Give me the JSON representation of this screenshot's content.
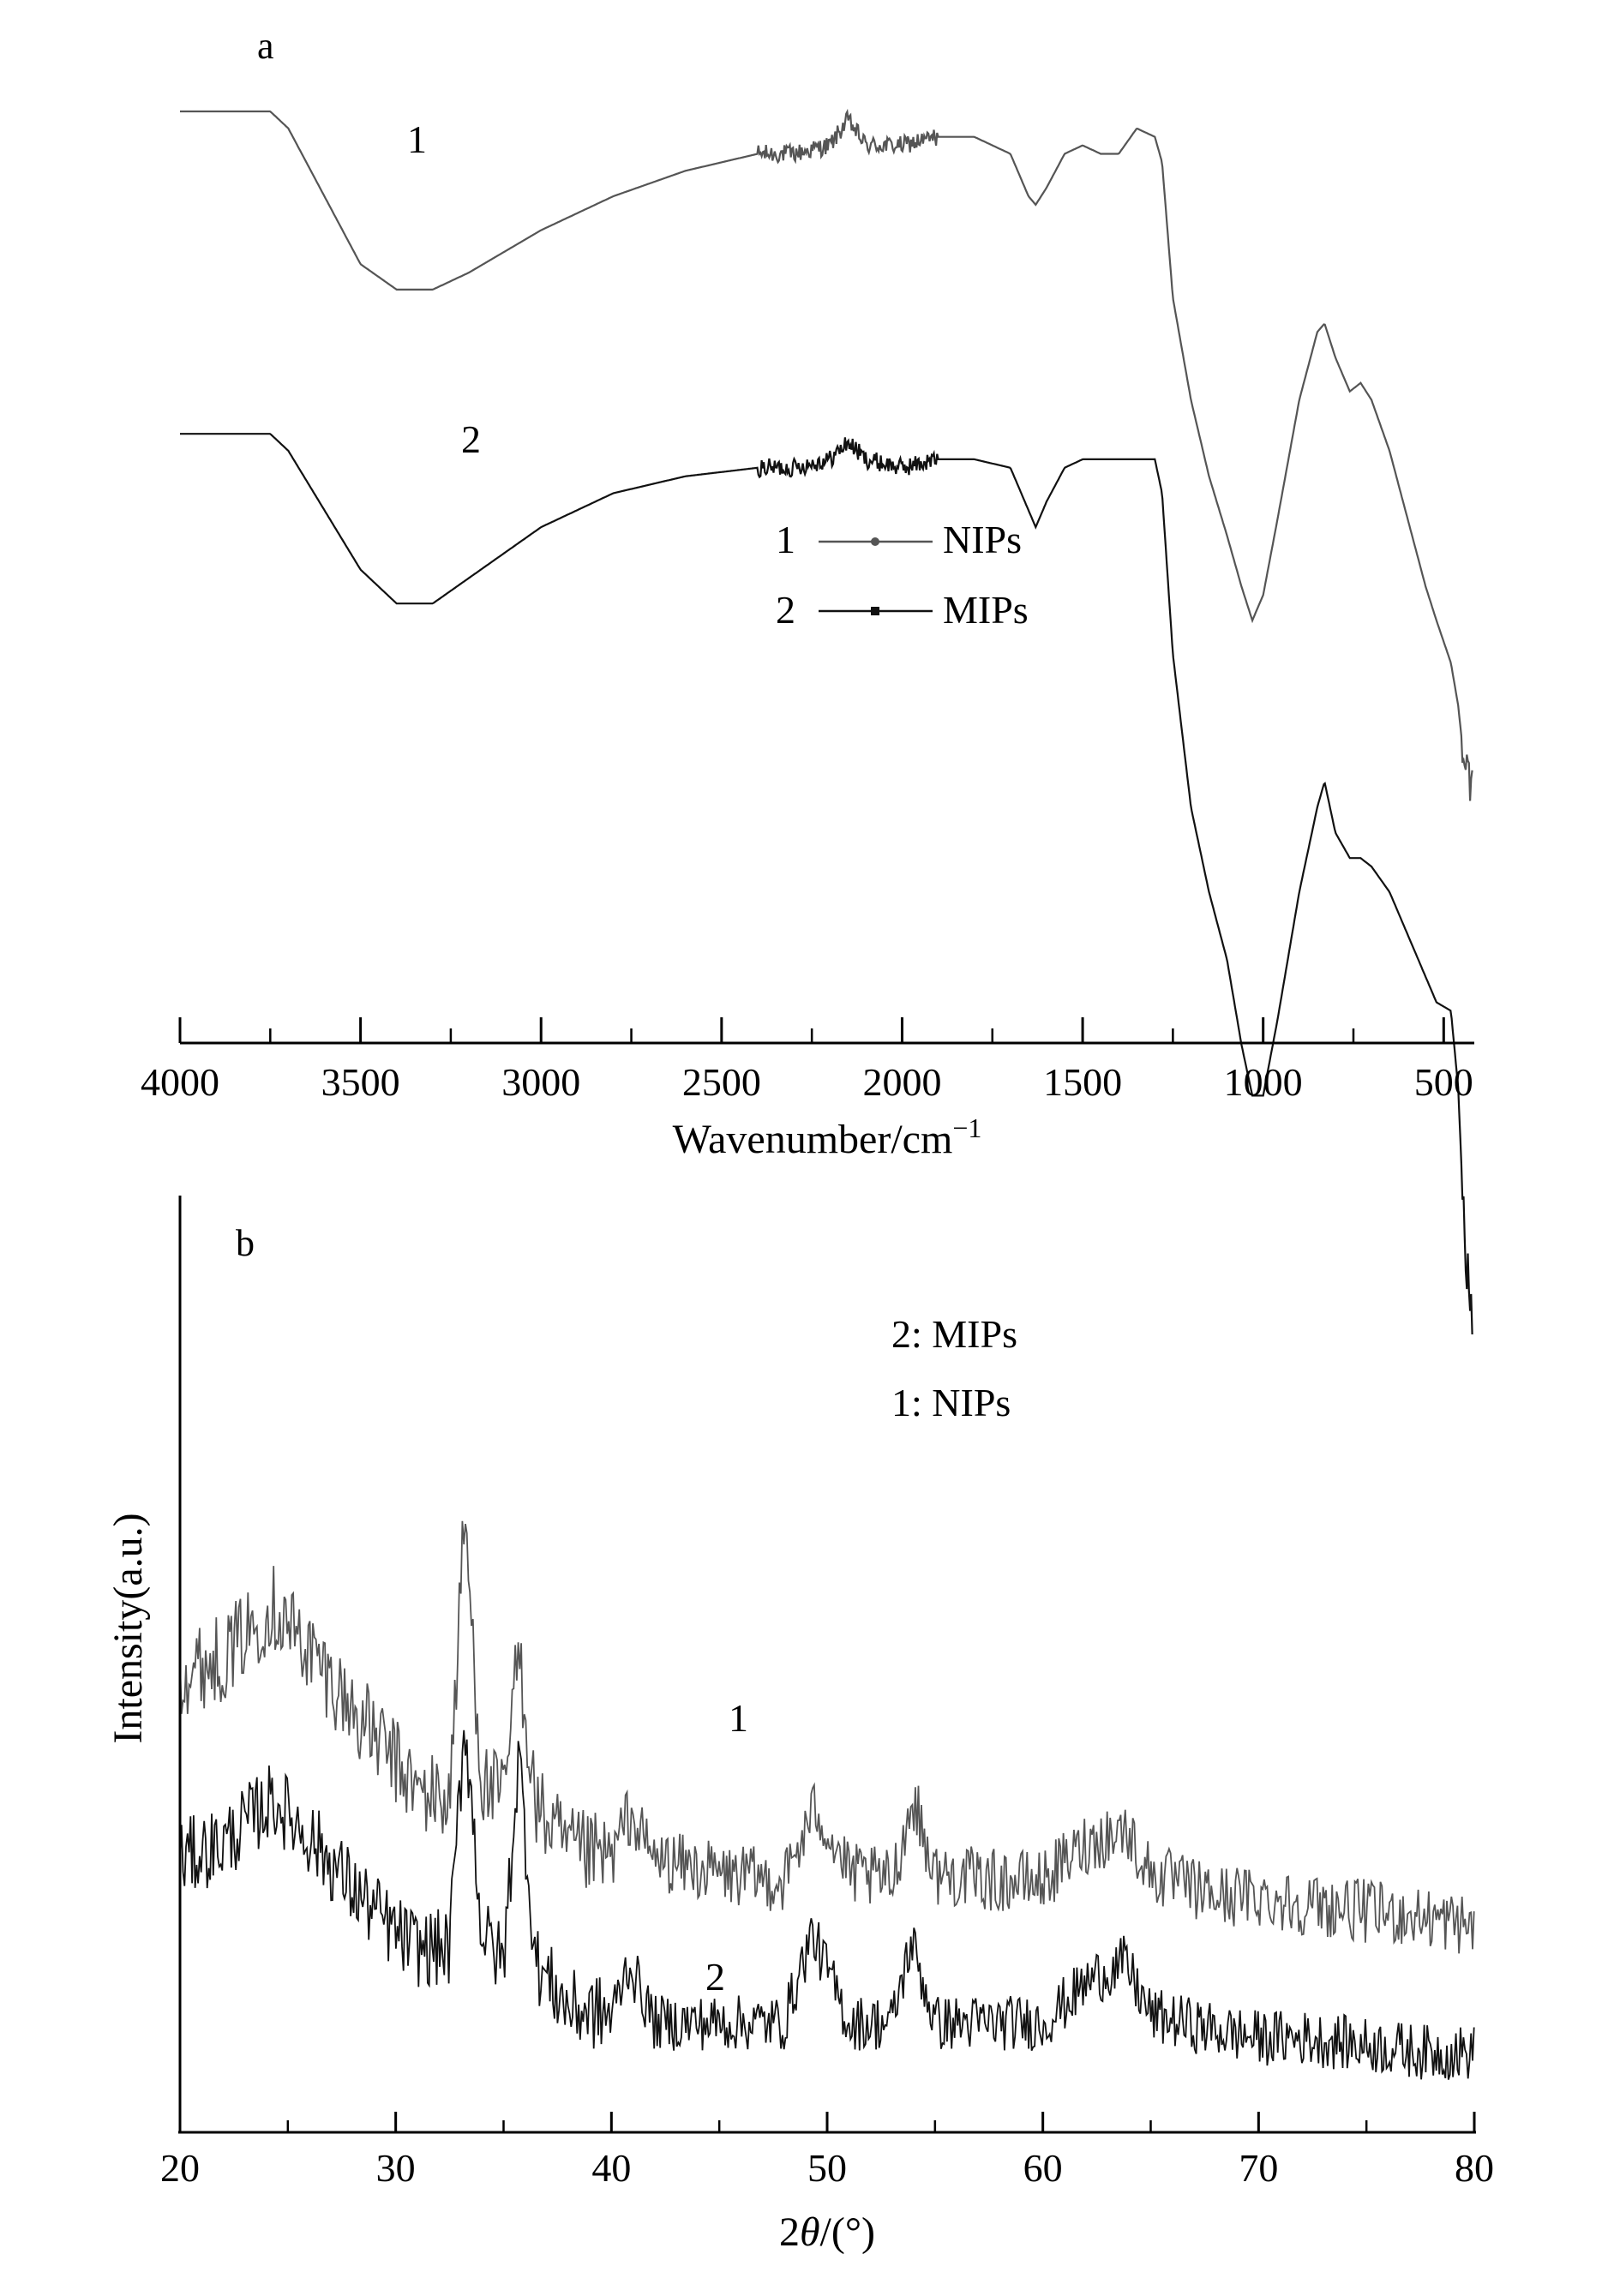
{
  "panel_a": {
    "panel_label": "a",
    "curve_labels": [
      "1",
      "2"
    ],
    "legend": [
      {
        "number": "1",
        "marker": "circle",
        "name": "NIPs"
      },
      {
        "number": "2",
        "marker": "square",
        "name": "MIPs"
      }
    ],
    "xlabel_main": "Wavenumber/cm",
    "xlabel_sup": "−1"
  },
  "panel_b": {
    "panel_label": "b",
    "legend": [
      "2: MIPs",
      "1: NIPs"
    ],
    "curve_labels": [
      "1",
      "2"
    ],
    "ylabel": "Intensity(a.u.)",
    "xlabel_pre": "2",
    "xlabel_theta": "θ",
    "xlabel_post": "/(°)"
  },
  "colors": {
    "nips": "#555555",
    "mips": "#111111",
    "axis": "#000000"
  },
  "chart_data": [
    {
      "type": "line",
      "x_axis": {
        "label": "Wavenumber/cm−1",
        "range": [
          4000,
          420
        ],
        "reversed": true,
        "ticks": [
          4000,
          3500,
          3000,
          2500,
          2000,
          1500,
          1000,
          500
        ],
        "minor_step": 250
      },
      "y_axis": {
        "label": "",
        "ticks": false,
        "units": "transmittance (arbitrary)"
      },
      "grid": false,
      "legend_position": "center-right",
      "series": [
        {
          "name": "NIPs",
          "label": "1",
          "x": [
            4000,
            3750,
            3700,
            3600,
            3500,
            3400,
            3300,
            3200,
            3000,
            2800,
            2600,
            2400,
            2300,
            2200,
            2150,
            2100,
            2000,
            1900,
            1800,
            1700,
            1650,
            1630,
            1600,
            1550,
            1500,
            1450,
            1400,
            1350,
            1300,
            1280,
            1250,
            1200,
            1150,
            1100,
            1060,
            1030,
            1000,
            960,
            900,
            850,
            830,
            800,
            760,
            730,
            700,
            650,
            600,
            550,
            520,
            480,
            460,
            440,
            420
          ],
          "y": [
            100,
            100,
            98,
            90,
            82,
            79,
            79,
            81,
            86,
            90,
            93,
            95,
            95,
            96,
            99,
            96,
            96,
            97,
            97,
            95,
            90,
            89,
            91,
            95,
            96,
            95,
            95,
            98,
            97,
            94,
            78,
            66,
            57,
            50,
            44,
            40,
            43,
            52,
            66,
            74,
            75,
            71,
            67,
            68,
            66,
            60,
            52,
            44,
            40,
            35,
            30,
            22,
            20
          ]
        },
        {
          "name": "MIPs",
          "label": "2",
          "x": [
            4000,
            3750,
            3700,
            3600,
            3500,
            3400,
            3300,
            3200,
            3000,
            2800,
            2600,
            2400,
            2300,
            2200,
            2150,
            2100,
            2000,
            1900,
            1800,
            1700,
            1650,
            1630,
            1600,
            1550,
            1500,
            1450,
            1400,
            1350,
            1300,
            1280,
            1250,
            1200,
            1150,
            1100,
            1060,
            1030,
            1000,
            960,
            900,
            850,
            830,
            800,
            760,
            730,
            700,
            650,
            600,
            550,
            520,
            480,
            460,
            440,
            420
          ],
          "y": [
            62,
            62,
            60,
            53,
            46,
            42,
            42,
            45,
            51,
            55,
            57,
            58,
            58,
            59,
            61,
            59,
            58,
            59,
            59,
            58,
            53,
            51,
            54,
            58,
            59,
            59,
            59,
            59,
            59,
            55,
            36,
            18,
            8,
            0,
            -10,
            -16,
            -16,
            -7,
            8,
            18,
            21,
            15,
            12,
            12,
            11,
            8,
            3,
            -2,
            -5,
            -6,
            -15,
            -35,
            -42
          ]
        }
      ]
    },
    {
      "type": "line",
      "x_axis": {
        "label": "2θ/(°)",
        "range": [
          20,
          80
        ],
        "ticks": [
          20,
          30,
          40,
          50,
          60,
          70,
          80
        ],
        "minor_step": 5
      },
      "y_axis": {
        "label": "Intensity(a.u.)",
        "ticks": false,
        "range": [
          0,
          1
        ]
      },
      "grid": false,
      "legend_position": "top-center",
      "series": [
        {
          "name": "NIPs",
          "label": "1",
          "x": [
            20,
            22,
            24.3,
            26,
            28,
            30,
            31,
            32.5,
            33.2,
            34,
            35,
            35.7,
            36.5,
            38,
            40,
            40.8,
            42,
            45,
            48,
            49.5,
            51,
            53,
            54,
            55,
            58,
            60,
            62,
            63.8,
            65,
            68,
            70,
            72,
            75,
            78,
            80
          ],
          "y": [
            0.55,
            0.57,
            0.64,
            0.58,
            0.5,
            0.43,
            0.39,
            0.38,
            0.76,
            0.4,
            0.38,
            0.58,
            0.37,
            0.31,
            0.3,
            0.36,
            0.3,
            0.28,
            0.27,
            0.37,
            0.28,
            0.27,
            0.38,
            0.28,
            0.27,
            0.27,
            0.32,
            0.34,
            0.28,
            0.25,
            0.25,
            0.24,
            0.23,
            0.22,
            0.21
          ]
        },
        {
          "name": "MIPs",
          "label": "2",
          "x": [
            20,
            22,
            24.3,
            26,
            28,
            30,
            31,
            32.5,
            33.2,
            34,
            35,
            35.7,
            36.5,
            38,
            40,
            40.8,
            42,
            45,
            48,
            49.3,
            51,
            53,
            53.9,
            55,
            58,
            60,
            62.3,
            63.8,
            65,
            68,
            70,
            72,
            75,
            78,
            80
          ],
          "y": [
            0.3,
            0.32,
            0.38,
            0.33,
            0.26,
            0.2,
            0.18,
            0.18,
            0.49,
            0.2,
            0.16,
            0.44,
            0.16,
            0.1,
            0.09,
            0.16,
            0.08,
            0.08,
            0.08,
            0.2,
            0.08,
            0.08,
            0.19,
            0.08,
            0.08,
            0.08,
            0.14,
            0.16,
            0.09,
            0.07,
            0.06,
            0.06,
            0.05,
            0.04,
            0.04
          ]
        }
      ]
    }
  ]
}
